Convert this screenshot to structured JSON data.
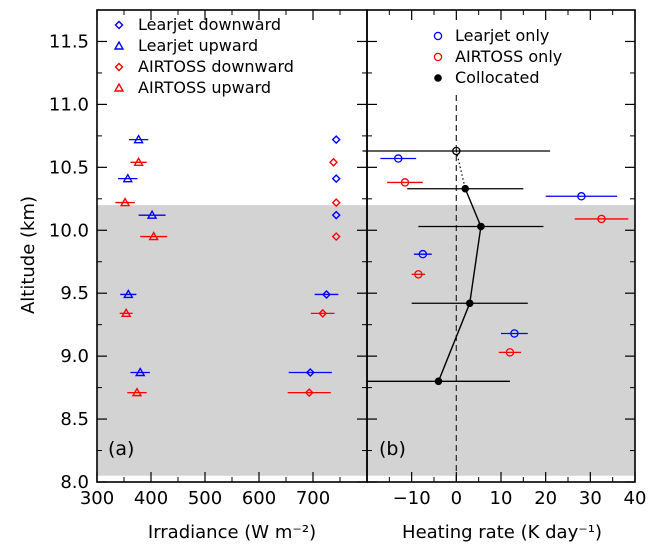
{
  "y_axis": {
    "label": "Altitude (km)",
    "range": [
      8.0,
      11.75
    ],
    "ticks": [
      "8.0",
      "8.5",
      "9.0",
      "9.5",
      "10.0",
      "10.5",
      "11.0",
      "11.5"
    ],
    "tick_values": [
      8.0,
      8.5,
      9.0,
      9.5,
      10.0,
      10.5,
      11.0,
      11.5
    ]
  },
  "shading": {
    "color": "#d3d3d3",
    "y_range": [
      8.05,
      10.2
    ]
  },
  "chart_data": [
    {
      "panel": "(a)",
      "type": "scatter",
      "xlabel": "Irradiance (W m⁻²)",
      "xlim": [
        300,
        800
      ],
      "x_ticks": [
        "300",
        "400",
        "500",
        "600",
        "700"
      ],
      "x_tick_values": [
        300,
        400,
        500,
        600,
        700
      ],
      "legend_position": "top",
      "series": [
        {
          "name": "Learjet downward",
          "color": "#0000ff",
          "marker": "diamond",
          "points": [
            {
              "x": 743,
              "y": 10.72
            },
            {
              "x": 743,
              "y": 10.41
            },
            {
              "x": 743,
              "y": 10.12
            },
            {
              "x": 725,
              "y": 9.49
            },
            {
              "x": 695,
              "y": 8.87
            }
          ],
          "xerr": [
            0,
            0,
            0,
            22,
            40
          ]
        },
        {
          "name": "Learjet upward",
          "color": "#0000ff",
          "marker": "triangle",
          "points": [
            {
              "x": 377,
              "y": 10.72
            },
            {
              "x": 357,
              "y": 10.41
            },
            {
              "x": 402,
              "y": 10.12
            },
            {
              "x": 358,
              "y": 9.49
            },
            {
              "x": 380,
              "y": 8.87
            }
          ],
          "xerr": [
            18,
            18,
            25,
            15,
            18
          ]
        },
        {
          "name": "AIRTOSS downward",
          "color": "#ff0000",
          "marker": "diamond",
          "points": [
            {
              "x": 738,
              "y": 10.54
            },
            {
              "x": 743,
              "y": 10.22
            },
            {
              "x": 743,
              "y": 9.95
            },
            {
              "x": 718,
              "y": 9.34
            },
            {
              "x": 693,
              "y": 8.71
            }
          ],
          "xerr": [
            0,
            0,
            0,
            22,
            40
          ]
        },
        {
          "name": "AIRTOSS upward",
          "color": "#ff0000",
          "marker": "triangle",
          "points": [
            {
              "x": 377,
              "y": 10.54
            },
            {
              "x": 352,
              "y": 10.22
            },
            {
              "x": 405,
              "y": 9.95
            },
            {
              "x": 354,
              "y": 9.34
            },
            {
              "x": 374,
              "y": 8.71
            }
          ],
          "xerr": [
            15,
            18,
            25,
            12,
            18
          ]
        }
      ]
    },
    {
      "panel": "(b)",
      "type": "scatter",
      "xlabel": "Heating rate (K day⁻¹)",
      "xlim": [
        -20,
        40
      ],
      "x_ticks": [
        "−10",
        "0",
        "10",
        "20",
        "30",
        "40"
      ],
      "x_tick_values": [
        -10,
        0,
        10,
        20,
        30,
        40
      ],
      "zero_line": 0,
      "legend_position": "top",
      "series": [
        {
          "name": "Learjet only",
          "color": "#0000ff",
          "marker": "open-circle",
          "points": [
            {
              "x": -13,
              "y": 10.57
            },
            {
              "x": 28,
              "y": 10.27
            },
            {
              "x": -7.5,
              "y": 9.81
            },
            {
              "x": 13,
              "y": 9.18
            }
          ],
          "xerr": [
            4,
            8,
            2,
            3
          ]
        },
        {
          "name": "AIRTOSS only",
          "color": "#ff0000",
          "marker": "open-circle",
          "points": [
            {
              "x": -11.5,
              "y": 10.38
            },
            {
              "x": 32.5,
              "y": 10.09
            },
            {
              "x": -8.5,
              "y": 9.65
            },
            {
              "x": 12,
              "y": 9.03
            }
          ],
          "xerr": [
            4,
            6,
            1.5,
            2.5
          ]
        },
        {
          "name": "Collocated",
          "color": "#000000",
          "marker": "filled-circle",
          "hollow_top": true,
          "points": [
            {
              "x": 0,
              "y": 10.63
            },
            {
              "x": 2,
              "y": 10.33
            },
            {
              "x": 5.5,
              "y": 10.03
            },
            {
              "x": 3,
              "y": 9.42
            },
            {
              "x": -4,
              "y": 8.8
            }
          ],
          "xerr": [
            21,
            13,
            14,
            13,
            16
          ]
        }
      ]
    }
  ]
}
